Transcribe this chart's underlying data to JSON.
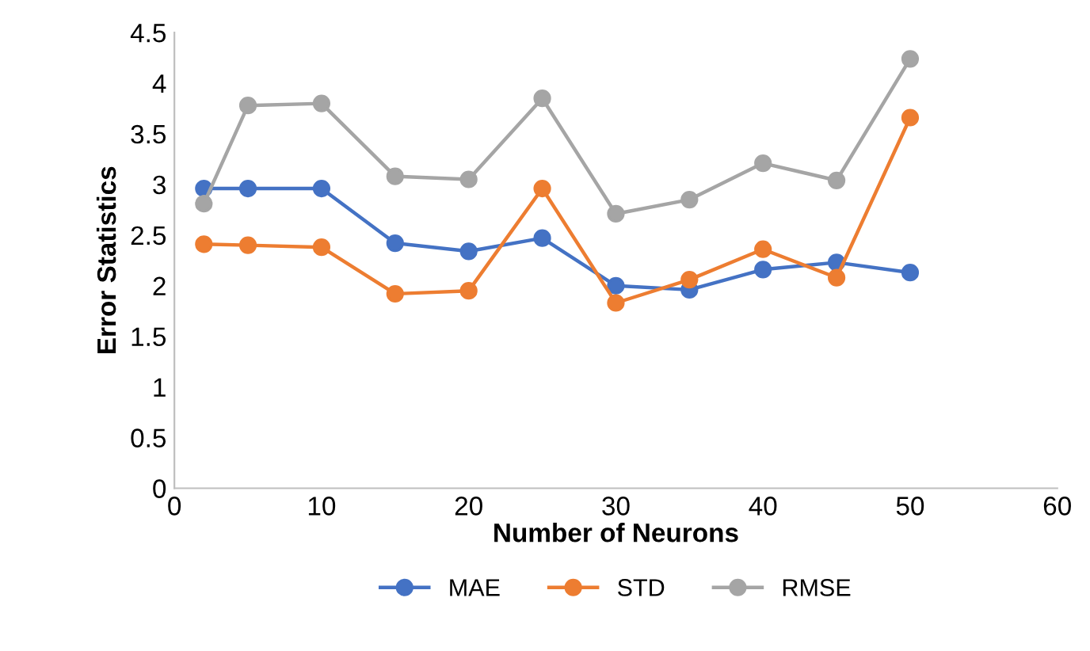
{
  "chart_data": {
    "type": "line",
    "xlabel": "Number of Neurons",
    "ylabel": "Error Statistics",
    "x": [
      2,
      5,
      10,
      15,
      20,
      25,
      30,
      35,
      40,
      45,
      50
    ],
    "series": [
      {
        "name": "MAE",
        "color": "#4472c4",
        "values": [
          2.96,
          2.96,
          2.96,
          2.42,
          2.34,
          2.47,
          2.0,
          1.96,
          2.16,
          2.23,
          2.13
        ]
      },
      {
        "name": "STD",
        "color": "#ed7d31",
        "values": [
          2.41,
          2.4,
          2.38,
          1.92,
          1.95,
          2.96,
          1.83,
          2.06,
          2.36,
          2.08,
          3.66
        ]
      },
      {
        "name": "RMSE",
        "color": "#a5a5a5",
        "values": [
          2.81,
          3.78,
          3.8,
          3.08,
          3.05,
          3.85,
          2.71,
          2.85,
          3.21,
          3.04,
          4.24
        ]
      }
    ],
    "xlim": [
      0,
      60
    ],
    "xticks": [
      0,
      10,
      20,
      30,
      40,
      50,
      60
    ],
    "ylim": [
      0,
      4.5
    ],
    "yticks": [
      0,
      0.5,
      1,
      1.5,
      2,
      2.5,
      3,
      3.5,
      4,
      4.5
    ],
    "grid": false,
    "legend": "bottom",
    "marker": "circle",
    "line_style": "solid"
  }
}
